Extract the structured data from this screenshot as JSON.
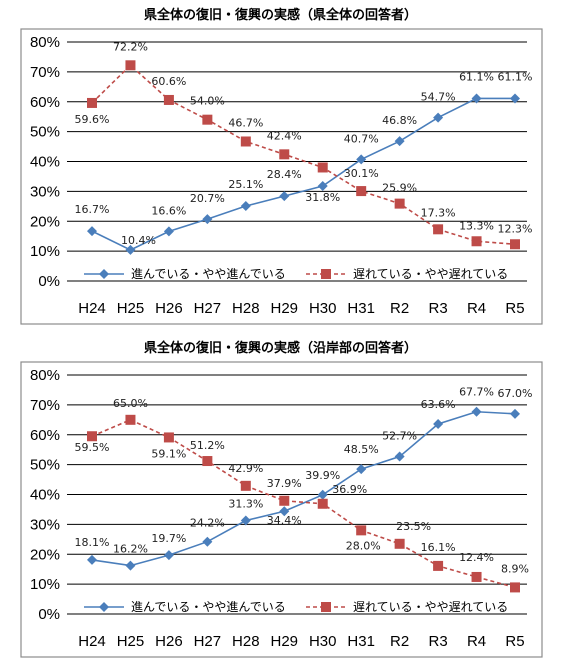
{
  "chart_data": [
    {
      "type": "line",
      "title": "県全体の復旧・復興の実感（県全体の回答者）",
      "categories": [
        "H24",
        "H25",
        "H26",
        "H27",
        "H28",
        "H29",
        "H30",
        "H31",
        "R2",
        "R3",
        "R4",
        "R5"
      ],
      "ytick_labels": [
        "0%",
        "10%",
        "20%",
        "30%",
        "40%",
        "50%",
        "60%",
        "70%",
        "80%"
      ],
      "ylim": [
        0,
        80
      ],
      "grid": true,
      "legend_position": "bottom",
      "series": [
        {
          "name": "進んでいる・やや進んでいる",
          "color": "#4a7ebb",
          "marker": "diamond",
          "line": "solid",
          "values": [
            16.7,
            10.4,
            16.6,
            20.7,
            25.1,
            28.4,
            31.8,
            40.7,
            46.8,
            54.7,
            61.1,
            61.1
          ],
          "labels": [
            "16.7%",
            "10.4%",
            "16.6%",
            "20.7%",
            "25.1%",
            "28.4%",
            "31.8%",
            "40.7%",
            "46.8%",
            "54.7%",
            "61.1%",
            "61.1%"
          ]
        },
        {
          "name": "遅れている・やや遅れている",
          "color": "#be4b48",
          "marker": "square",
          "line": "dashed",
          "values": [
            59.6,
            72.2,
            60.6,
            54.0,
            46.7,
            42.4,
            38.0,
            30.1,
            25.9,
            17.3,
            13.3,
            12.3
          ],
          "labels": [
            "59.6%",
            "72.2%",
            "60.6%",
            "54.0%",
            "46.7%",
            "42.4%",
            "",
            "30.1%",
            "25.9%",
            "17.3%",
            "13.3%",
            "12.3%"
          ]
        }
      ]
    },
    {
      "type": "line",
      "title": "県全体の復旧・復興の実感（沿岸部の回答者）",
      "categories": [
        "H24",
        "H25",
        "H26",
        "H27",
        "H28",
        "H29",
        "H30",
        "H31",
        "R2",
        "R3",
        "R4",
        "R5"
      ],
      "ytick_labels": [
        "0%",
        "10%",
        "20%",
        "30%",
        "40%",
        "50%",
        "60%",
        "70%",
        "80%"
      ],
      "ylim": [
        0,
        80
      ],
      "grid": true,
      "legend_position": "bottom",
      "series": [
        {
          "name": "進んでいる・やや進んでいる",
          "color": "#4a7ebb",
          "marker": "diamond",
          "line": "solid",
          "values": [
            18.1,
            16.2,
            19.7,
            24.2,
            31.3,
            34.4,
            39.9,
            48.5,
            52.7,
            63.6,
            67.7,
            67.0
          ],
          "labels": [
            "18.1%",
            "16.2%",
            "19.7%",
            "24.2%",
            "31.3%",
            "34.4%",
            "39.9%",
            "48.5%",
            "52.7%",
            "63.6%",
            "67.7%",
            "67.0%"
          ]
        },
        {
          "name": "遅れている・やや遅れている",
          "color": "#be4b48",
          "marker": "square",
          "line": "dashed",
          "values": [
            59.5,
            65.0,
            59.1,
            51.2,
            42.9,
            37.9,
            36.9,
            28.0,
            23.5,
            16.1,
            12.4,
            8.9
          ],
          "labels": [
            "59.5%",
            "65.0%",
            "59.1%",
            "51.2%",
            "42.9%",
            "37.9%",
            "36.9%",
            "28.0%",
            "23.5%",
            "16.1%",
            "12.4%",
            "8.9%"
          ]
        }
      ]
    }
  ]
}
